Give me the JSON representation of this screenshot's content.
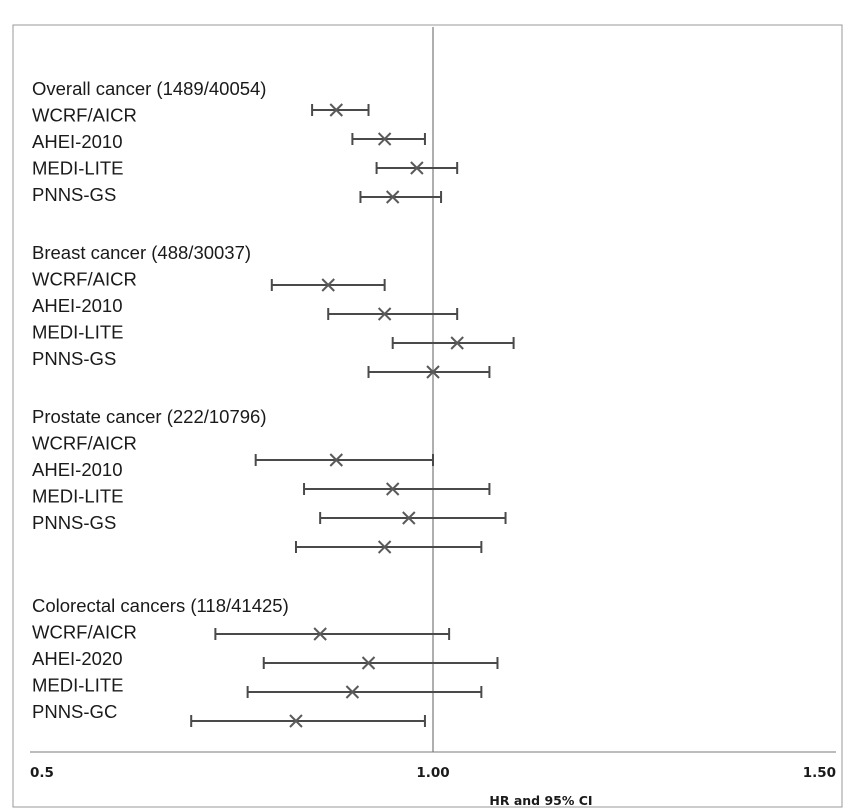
{
  "chart_data": {
    "type": "forest",
    "xlabel": "HR and 95% CI",
    "xlim": [
      0.5,
      1.5
    ],
    "x_ticks": [
      {
        "value": 0.5,
        "label": "0.5"
      },
      {
        "value": 1.0,
        "label": "1.00"
      },
      {
        "value": 1.5,
        "label": "1.50"
      }
    ],
    "reference_line": 1.0,
    "groups": [
      {
        "name": "Overall cancer (1489/40054)",
        "labels": [
          "WCRF/AICR",
          "AHEI-2010",
          "MEDI-LITE",
          "PNNS-GS"
        ],
        "estimates": [
          {
            "hr": 0.88,
            "lo": 0.85,
            "hi": 0.92
          },
          {
            "hr": 0.94,
            "lo": 0.9,
            "hi": 0.99
          },
          {
            "hr": 0.98,
            "lo": 0.93,
            "hi": 1.03
          },
          {
            "hr": 0.95,
            "lo": 0.91,
            "hi": 1.01
          }
        ]
      },
      {
        "name": "Breast cancer (488/30037)",
        "labels": [
          "WCRF/AICR",
          "AHEI-2010",
          "MEDI-LITE",
          "PNNS-GS"
        ],
        "estimates": [
          {
            "hr": 0.87,
            "lo": 0.8,
            "hi": 0.94
          },
          {
            "hr": 0.94,
            "lo": 0.87,
            "hi": 1.03
          },
          {
            "hr": 1.03,
            "lo": 0.95,
            "hi": 1.1
          },
          {
            "hr": 1.0,
            "lo": 0.92,
            "hi": 1.07
          }
        ]
      },
      {
        "name": "Prostate cancer (222/10796)",
        "labels": [
          "WCRF/AICR",
          "AHEI-2010",
          "MEDI-LITE",
          "PNNS-GS"
        ],
        "estimates": [
          {
            "hr": 0.88,
            "lo": 0.78,
            "hi": 1.0
          },
          {
            "hr": 0.95,
            "lo": 0.84,
            "hi": 1.07
          },
          {
            "hr": 0.97,
            "lo": 0.86,
            "hi": 1.09
          },
          {
            "hr": 0.94,
            "lo": 0.83,
            "hi": 1.06
          }
        ]
      },
      {
        "name": "Colorectal cancers (118/41425)",
        "labels": [
          "WCRF/AICR",
          "AHEI-2020",
          "MEDI-LITE",
          "PNNS-GC"
        ],
        "estimates": [
          {
            "hr": 0.86,
            "lo": 0.73,
            "hi": 1.02
          },
          {
            "hr": 0.92,
            "lo": 0.79,
            "hi": 1.08
          },
          {
            "hr": 0.9,
            "lo": 0.77,
            "hi": 1.06
          },
          {
            "hr": 0.83,
            "lo": 0.7,
            "hi": 0.99
          }
        ]
      }
    ]
  }
}
